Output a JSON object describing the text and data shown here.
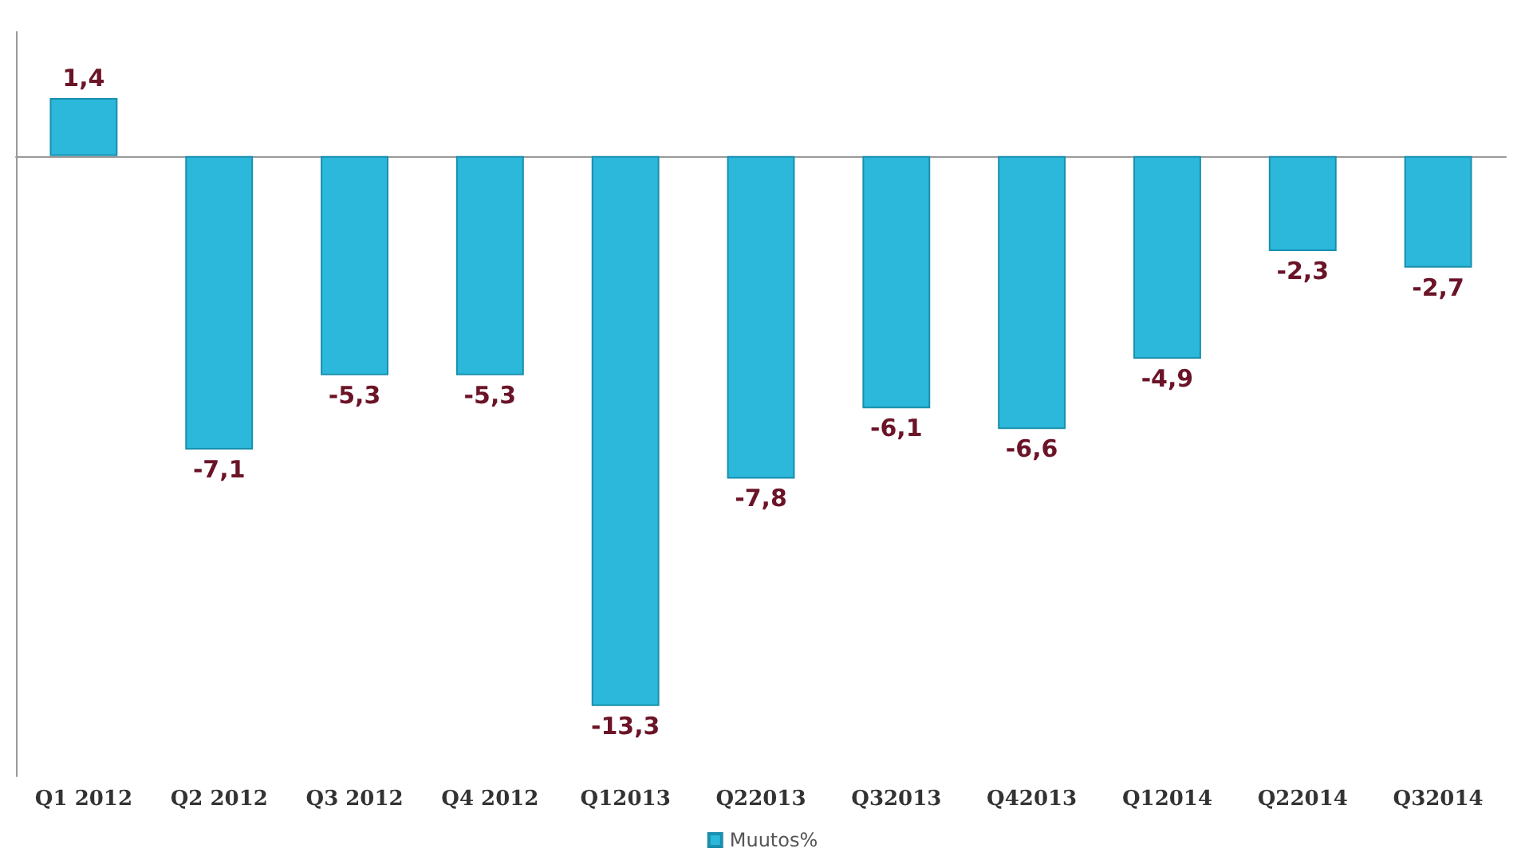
{
  "chart_data": {
    "type": "bar",
    "categories": [
      "Q1 2012",
      "Q2 2012",
      "Q3 2012",
      "Q4 2012",
      "Q12013",
      "Q22013",
      "Q32013",
      "Q42013",
      "Q12014",
      "Q22014",
      "Q32014"
    ],
    "series": [
      {
        "name": "Muutos%",
        "color": "#2bb8da",
        "values": [
          1.4,
          -7.1,
          -5.3,
          -5.3,
          -13.3,
          -7.8,
          -6.1,
          -6.6,
          -4.9,
          -2.3,
          -2.7
        ],
        "value_labels": [
          "1,4",
          "-7,1",
          "-5,3",
          "-5,3",
          "-13,3",
          "-7,8",
          "-6,1",
          "-6,6",
          "-4,9",
          "-2,3",
          "-2,7"
        ]
      }
    ],
    "legend": "bottom",
    "grid": false
  }
}
